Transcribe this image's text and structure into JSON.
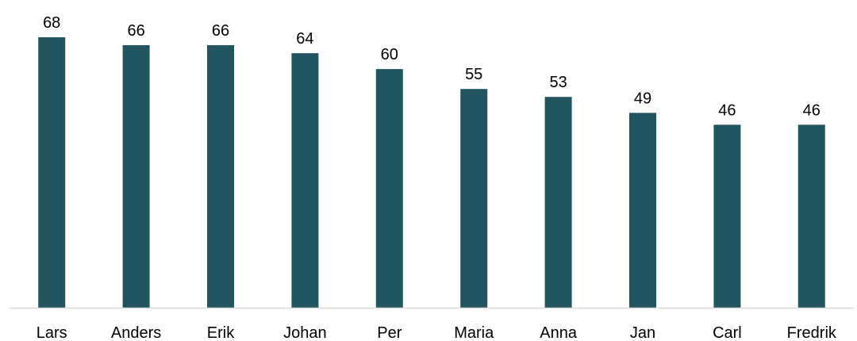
{
  "colors": {
    "bar": "#215660",
    "axis": "#d9d9d9",
    "text": "#000000",
    "background": "#ffffff"
  },
  "chart_data": {
    "type": "bar",
    "categories": [
      "Lars",
      "Anders",
      "Erik",
      "Johan",
      "Per",
      "Maria",
      "Anna",
      "Jan",
      "Carl",
      "Fredrik"
    ],
    "values": [
      68,
      66,
      66,
      64,
      60,
      55,
      53,
      49,
      46,
      46
    ],
    "title": "",
    "xlabel": "",
    "ylabel": "",
    "ylim": [
      0,
      68
    ],
    "grid": false,
    "legend": "none",
    "data_labels": true,
    "y_axis_visible": false
  }
}
